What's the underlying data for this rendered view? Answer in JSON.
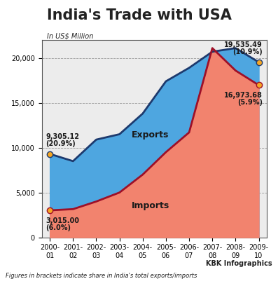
{
  "chart_data": {
    "type": "area",
    "title": "India's Trade with USA",
    "subtitle": "In US$ Million",
    "note": "Figures in brackets indicate share in India's total exports/imports",
    "source": "KBK Infographics",
    "categories": [
      "2000-01",
      "2001-02",
      "2002-03",
      "2003-04",
      "2004-05",
      "2005-06",
      "2006-07",
      "2007-08",
      "2008-09",
      "2009-10"
    ],
    "series": [
      {
        "name": "Exports",
        "color": "#4ea6e0",
        "values": [
          9305.12,
          8500,
          10900,
          11500,
          13800,
          17400,
          18900,
          20700,
          21100,
          19535.49
        ],
        "value_labels": [
          "9,305.12\n(20.9%)",
          null,
          null,
          null,
          null,
          null,
          null,
          null,
          null,
          "19,535.49\n(10.9%)"
        ]
      },
      {
        "name": "Imports",
        "color": "#f2836e",
        "values": [
          3015.0,
          3150,
          4000,
          5000,
          7000,
          9500,
          11700,
          21100,
          18600,
          16973.68
        ],
        "value_labels": [
          "3,015.00\n(6.0%)",
          null,
          null,
          null,
          null,
          null,
          null,
          null,
          null,
          "16,973.68\n(5.9%)"
        ]
      }
    ],
    "ylim": [
      0,
      22000
    ],
    "yticks": [
      0,
      {
        "value": 5000,
        "label": "5,000"
      },
      {
        "value": 10000,
        "label": "10,000"
      },
      {
        "value": 15000,
        "label": "15,000"
      },
      {
        "value": 20000,
        "label": "20,000"
      }
    ],
    "grid": true,
    "data_labels": true
  }
}
